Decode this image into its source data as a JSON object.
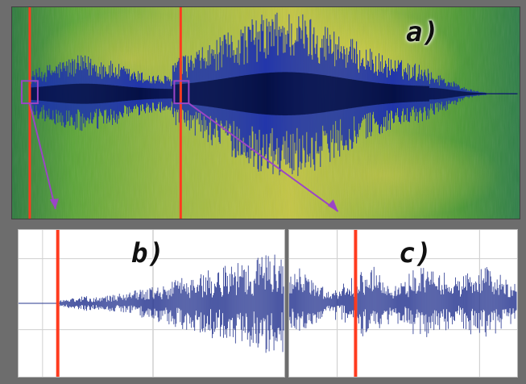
{
  "panels": {
    "a": {
      "label": "a)"
    },
    "b": {
      "label": "b)"
    },
    "c": {
      "label": "c)"
    }
  },
  "colors": {
    "frame": "#6d6d6d",
    "green_dark": "#2d7b3d",
    "green": "#5da339",
    "yellow": "#c3c144",
    "waveform_dark": "#07125a",
    "waveform": "#1a3ab8",
    "marker_red": "#ff3b1f",
    "marker_purple": "#9b45c6",
    "grid": "#b8b8b8"
  }
}
